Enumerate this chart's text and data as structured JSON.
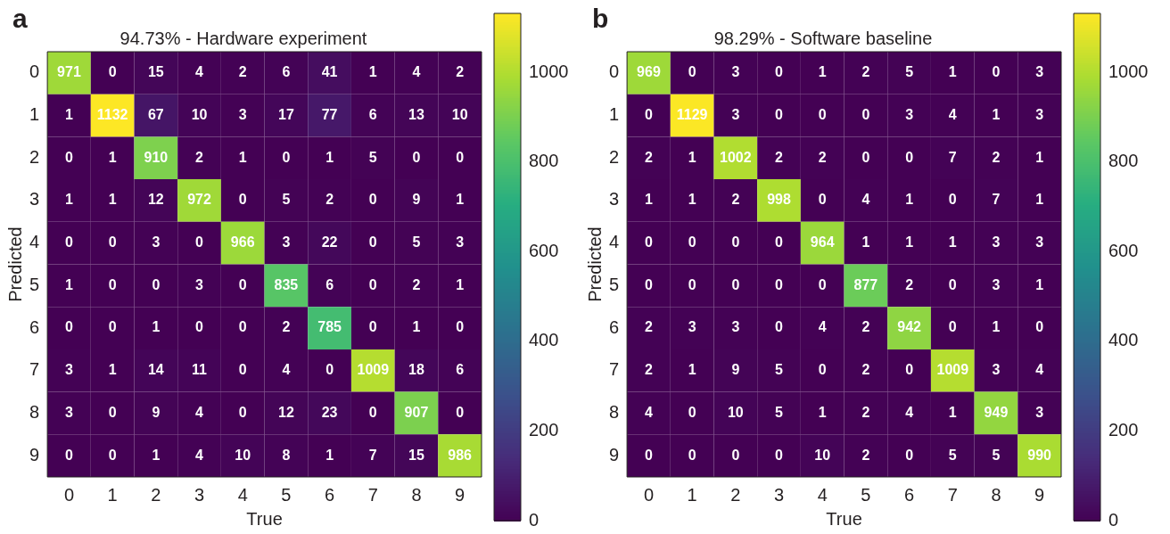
{
  "chart_data": [
    {
      "type": "heatmap",
      "title": "94.73% - Hardware experiment",
      "xlabel": "True",
      "ylabel": "Predicted",
      "annotations": [
        "a"
      ],
      "categories": [
        "0",
        "1",
        "2",
        "3",
        "4",
        "5",
        "6",
        "7",
        "8",
        "9"
      ],
      "y_categories": [
        "0",
        "1",
        "2",
        "3",
        "4",
        "5",
        "6",
        "7",
        "8",
        "9"
      ],
      "cells": [
        [
          971,
          0,
          15,
          4,
          2,
          6,
          41,
          1,
          4,
          2
        ],
        [
          1,
          1132,
          67,
          10,
          3,
          17,
          77,
          6,
          13,
          10
        ],
        [
          0,
          1,
          910,
          2,
          1,
          0,
          1,
          5,
          0,
          0
        ],
        [
          1,
          1,
          12,
          972,
          0,
          5,
          2,
          0,
          9,
          1
        ],
        [
          0,
          0,
          3,
          0,
          966,
          3,
          22,
          0,
          5,
          3
        ],
        [
          1,
          0,
          0,
          3,
          0,
          835,
          6,
          0,
          2,
          1
        ],
        [
          0,
          0,
          1,
          0,
          0,
          2,
          785,
          0,
          1,
          0
        ],
        [
          3,
          1,
          14,
          11,
          0,
          4,
          0,
          1009,
          18,
          6
        ],
        [
          3,
          0,
          9,
          4,
          0,
          12,
          23,
          0,
          907,
          0
        ],
        [
          0,
          0,
          1,
          4,
          10,
          8,
          1,
          7,
          15,
          986
        ]
      ],
      "clim": [
        0,
        1132
      ],
      "cticks": [
        0,
        200,
        400,
        600,
        800,
        1000
      ],
      "data_labels": true
    },
    {
      "type": "heatmap",
      "title": "98.29% - Software baseline",
      "xlabel": "True",
      "ylabel": "Predicted",
      "annotations": [
        "b"
      ],
      "categories": [
        "0",
        "1",
        "2",
        "3",
        "4",
        "5",
        "6",
        "7",
        "8",
        "9"
      ],
      "y_categories": [
        "0",
        "1",
        "2",
        "3",
        "4",
        "5",
        "6",
        "7",
        "8",
        "9"
      ],
      "cells": [
        [
          969,
          0,
          3,
          0,
          1,
          2,
          5,
          1,
          0,
          3
        ],
        [
          0,
          1129,
          3,
          0,
          0,
          0,
          3,
          4,
          1,
          3
        ],
        [
          2,
          1,
          1002,
          2,
          2,
          0,
          0,
          7,
          2,
          1
        ],
        [
          1,
          1,
          2,
          998,
          0,
          4,
          1,
          0,
          7,
          1
        ],
        [
          0,
          0,
          0,
          0,
          964,
          1,
          1,
          1,
          3,
          3
        ],
        [
          0,
          0,
          0,
          0,
          0,
          877,
          2,
          0,
          3,
          1
        ],
        [
          2,
          3,
          3,
          0,
          4,
          2,
          942,
          0,
          1,
          0
        ],
        [
          2,
          1,
          9,
          5,
          0,
          2,
          0,
          1009,
          3,
          4
        ],
        [
          4,
          0,
          10,
          5,
          1,
          2,
          4,
          1,
          949,
          3
        ],
        [
          0,
          0,
          0,
          0,
          10,
          2,
          0,
          5,
          5,
          990
        ]
      ],
      "clim": [
        0,
        1132
      ],
      "cticks": [
        0,
        200,
        400,
        600,
        800,
        1000
      ],
      "data_labels": true
    }
  ]
}
